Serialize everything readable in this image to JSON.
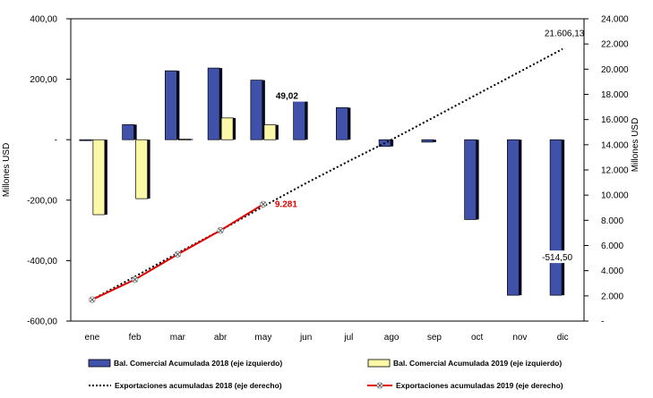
{
  "chart_data": {
    "type": "bar",
    "categories": [
      "ene",
      "feb",
      "mar",
      "abr",
      "may",
      "jun",
      "jul",
      "ago",
      "sep",
      "oct",
      "nov",
      "dic"
    ],
    "y_left": {
      "label": "Millones USD",
      "range": [
        -600,
        400
      ],
      "ticks": [
        400,
        200,
        0,
        -200,
        -400,
        -600
      ],
      "tick_labels": [
        "400,00",
        "200,00",
        "-",
        "-200,00",
        "-400,00",
        "-600,00"
      ]
    },
    "y_right": {
      "label": "Millones USD",
      "range": [
        0,
        24000
      ],
      "ticks": [
        24000,
        22000,
        20000,
        18000,
        16000,
        14000,
        12000,
        10000,
        8000,
        6000,
        4000,
        2000,
        0
      ],
      "tick_labels": [
        "24.000",
        "22.000",
        "20.000",
        "18.000",
        "16.000",
        "14.000",
        "12.000",
        "10.000",
        "8.000",
        "6.000",
        "4.000",
        "2.000",
        "-"
      ]
    },
    "series": [
      {
        "name": "Bal. Comercial Acumulada 2018 (eje izquierdo)",
        "kind": "bar",
        "axis": "left",
        "color": "#3f51a8",
        "values": [
          -3,
          50,
          228,
          237,
          197,
          150,
          106,
          -22,
          -8,
          -264,
          -514.5,
          -514.5
        ]
      },
      {
        "name": "Bal. Comercial Acumulada 2019 (eje izquierdo)",
        "kind": "bar",
        "axis": "left",
        "color": "#fbf8a8",
        "values": [
          -248,
          -195,
          2,
          72,
          49.02,
          null,
          null,
          null,
          null,
          null,
          null,
          null
        ]
      },
      {
        "name": "Exportaciones acumuladas 2018 (eje derecho)",
        "kind": "line",
        "style": "dotted",
        "axis": "right",
        "color": "#000000",
        "values": [
          1700,
          3530,
          5400,
          7200,
          9100,
          10950,
          12700,
          14400,
          16200,
          18000,
          19800,
          21606.13
        ]
      },
      {
        "name": "Exportaciones acumuladas 2019 (eje derecho)",
        "kind": "line",
        "marker": "x",
        "axis": "right",
        "color": "#e00000",
        "values": [
          1700,
          3300,
          5300,
          7200,
          9281,
          null,
          null,
          null,
          null,
          null,
          null,
          null
        ]
      }
    ],
    "annotations": [
      {
        "text": "21.606,13",
        "series": 2,
        "index": 11
      },
      {
        "text": "49,02",
        "series": 1,
        "index": 4
      },
      {
        "text": "9.281",
        "series": 3,
        "index": 4
      },
      {
        "text": "-514,50",
        "series": 0,
        "index": 11
      }
    ],
    "legend_position": "bottom"
  }
}
